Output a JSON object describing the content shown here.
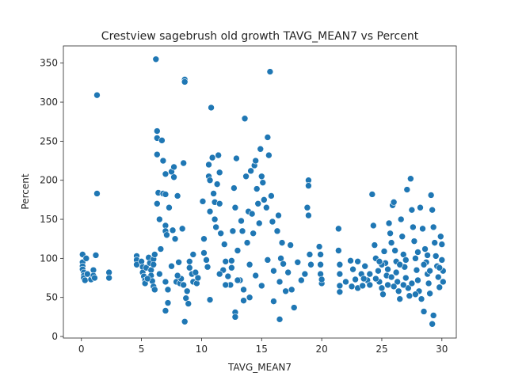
{
  "chart_data": {
    "type": "scatter",
    "title": "Crestview sagebrush old growth TAVG_MEAN7 vs Percent",
    "xlabel": "TAVG_MEAN7",
    "ylabel": "Percent",
    "xlim": [
      -1.5,
      31.2
    ],
    "ylim": [
      -2,
      372
    ],
    "xticks": [
      0,
      5,
      10,
      15,
      20,
      25,
      30
    ],
    "yticks": [
      0,
      50,
      100,
      150,
      200,
      250,
      300,
      350
    ],
    "grid": false,
    "legend": "none",
    "marker_color": "#1f77b4",
    "points": [
      [
        0.1,
        105
      ],
      [
        0.1,
        95
      ],
      [
        0.1,
        90
      ],
      [
        0.1,
        86
      ],
      [
        0.2,
        82
      ],
      [
        0.2,
        78
      ],
      [
        0.2,
        75
      ],
      [
        0.3,
        72
      ],
      [
        0.4,
        100
      ],
      [
        0.5,
        80
      ],
      [
        0.8,
        73
      ],
      [
        1.0,
        85
      ],
      [
        1.0,
        78
      ],
      [
        1.1,
        75
      ],
      [
        1.2,
        104
      ],
      [
        1.3,
        309
      ],
      [
        1.3,
        183
      ],
      [
        2.3,
        82
      ],
      [
        2.3,
        75
      ],
      [
        4.6,
        103
      ],
      [
        4.6,
        98
      ],
      [
        4.6,
        92
      ],
      [
        5.0,
        96
      ],
      [
        5.1,
        89
      ],
      [
        5.1,
        82
      ],
      [
        5.2,
        77
      ],
      [
        5.3,
        72
      ],
      [
        5.3,
        68
      ],
      [
        5.4,
        88
      ],
      [
        5.6,
        101
      ],
      [
        5.7,
        94
      ],
      [
        5.8,
        85
      ],
      [
        5.8,
        78
      ],
      [
        5.9,
        71
      ],
      [
        6.0,
        64
      ],
      [
        6.0,
        99
      ],
      [
        6.1,
        105
      ],
      [
        6.1,
        60
      ],
      [
        6.2,
        355
      ],
      [
        6.3,
        263
      ],
      [
        6.3,
        254
      ],
      [
        6.3,
        233
      ],
      [
        6.4,
        184
      ],
      [
        6.3,
        170
      ],
      [
        6.5,
        150
      ],
      [
        6.6,
        112
      ],
      [
        6.7,
        251
      ],
      [
        6.8,
        225
      ],
      [
        6.8,
        183
      ],
      [
        7.0,
        208
      ],
      [
        7.0,
        182
      ],
      [
        7.0,
        142
      ],
      [
        7.0,
        135
      ],
      [
        7.1,
        130
      ],
      [
        7.2,
        60
      ],
      [
        7.2,
        43
      ],
      [
        7.0,
        33
      ],
      [
        7.3,
        165
      ],
      [
        7.5,
        211
      ],
      [
        7.6,
        136
      ],
      [
        7.7,
        217
      ],
      [
        7.7,
        204
      ],
      [
        7.8,
        125
      ],
      [
        7.9,
        70
      ],
      [
        8.0,
        180
      ],
      [
        8.1,
        95
      ],
      [
        8.2,
        68
      ],
      [
        8.3,
        74
      ],
      [
        8.4,
        138
      ],
      [
        8.5,
        222
      ],
      [
        8.6,
        329
      ],
      [
        8.6,
        326
      ],
      [
        8.6,
        19
      ],
      [
        8.7,
        49
      ],
      [
        8.8,
        58
      ],
      [
        8.9,
        42
      ],
      [
        9.0,
        96
      ],
      [
        9.2,
        80
      ],
      [
        9.3,
        105
      ],
      [
        9.3,
        70
      ],
      [
        9.5,
        82
      ],
      [
        9.6,
        68
      ],
      [
        9.7,
        75
      ],
      [
        10.1,
        173
      ],
      [
        10.2,
        125
      ],
      [
        10.2,
        107
      ],
      [
        10.4,
        98
      ],
      [
        10.5,
        89
      ],
      [
        10.6,
        220
      ],
      [
        10.6,
        205
      ],
      [
        10.7,
        200
      ],
      [
        10.7,
        160
      ],
      [
        10.7,
        47
      ],
      [
        10.8,
        293
      ],
      [
        10.9,
        229
      ],
      [
        11.0,
        183
      ],
      [
        11.1,
        172
      ],
      [
        11.1,
        150
      ],
      [
        11.2,
        140
      ],
      [
        11.3,
        195
      ],
      [
        11.4,
        232
      ],
      [
        11.5,
        210
      ],
      [
        11.5,
        170
      ],
      [
        11.6,
        132
      ],
      [
        11.8,
        85
      ],
      [
        11.9,
        118
      ],
      [
        12.0,
        96
      ],
      [
        12.2,
        77
      ],
      [
        12.4,
        66
      ],
      [
        12.5,
        97
      ],
      [
        12.6,
        135
      ],
      [
        12.7,
        190
      ],
      [
        12.8,
        165
      ],
      [
        12.8,
        31
      ],
      [
        12.8,
        25
      ],
      [
        12.9,
        228
      ],
      [
        13.0,
        110
      ],
      [
        13.2,
        72
      ],
      [
        13.3,
        148
      ],
      [
        13.4,
        135
      ],
      [
        13.5,
        46
      ],
      [
        13.6,
        279
      ],
      [
        13.7,
        205
      ],
      [
        13.8,
        120
      ],
      [
        13.9,
        160
      ],
      [
        14.0,
        50
      ],
      [
        14.1,
        212
      ],
      [
        14.2,
        157
      ],
      [
        14.3,
        132
      ],
      [
        14.4,
        219
      ],
      [
        14.5,
        225
      ],
      [
        14.6,
        189
      ],
      [
        14.7,
        170
      ],
      [
        14.8,
        145
      ],
      [
        14.9,
        240
      ],
      [
        15.0,
        205
      ],
      [
        15.1,
        197
      ],
      [
        15.2,
        175
      ],
      [
        15.4,
        165
      ],
      [
        15.5,
        255
      ],
      [
        15.6,
        232
      ],
      [
        15.7,
        339
      ],
      [
        15.8,
        180
      ],
      [
        15.9,
        147
      ],
      [
        16.0,
        45
      ],
      [
        16.3,
        135
      ],
      [
        16.4,
        155
      ],
      [
        16.5,
        22
      ],
      [
        16.6,
        100
      ],
      [
        16.7,
        120
      ],
      [
        16.8,
        93
      ],
      [
        17.2,
        82
      ],
      [
        17.4,
        117
      ],
      [
        17.5,
        60
      ],
      [
        17.7,
        37
      ],
      [
        18.0,
        95
      ],
      [
        18.3,
        72
      ],
      [
        18.6,
        80
      ],
      [
        18.8,
        165
      ],
      [
        18.9,
        200
      ],
      [
        18.9,
        193
      ],
      [
        18.9,
        155
      ],
      [
        19.0,
        105
      ],
      [
        19.1,
        92
      ],
      [
        19.8,
        115
      ],
      [
        19.9,
        105
      ],
      [
        19.9,
        92
      ],
      [
        19.9,
        80
      ],
      [
        20.0,
        68
      ],
      [
        20.0,
        73
      ],
      [
        21.4,
        138
      ],
      [
        21.4,
        110
      ],
      [
        21.5,
        92
      ],
      [
        21.5,
        80
      ],
      [
        21.5,
        65
      ],
      [
        21.5,
        57
      ],
      [
        22.4,
        97
      ],
      [
        22.6,
        86
      ],
      [
        22.8,
        73
      ],
      [
        23.0,
        62
      ],
      [
        23.0,
        96
      ],
      [
        23.3,
        80
      ],
      [
        23.4,
        65
      ],
      [
        23.6,
        90
      ],
      [
        23.8,
        72
      ],
      [
        24.0,
        66
      ],
      [
        24.2,
        182
      ],
      [
        24.3,
        142
      ],
      [
        24.4,
        117
      ],
      [
        24.5,
        100
      ],
      [
        24.7,
        84
      ],
      [
        24.8,
        70
      ],
      [
        25.0,
        62
      ],
      [
        25.1,
        54
      ],
      [
        25.2,
        109
      ],
      [
        25.3,
        94
      ],
      [
        25.4,
        78
      ],
      [
        25.5,
        66
      ],
      [
        25.6,
        145
      ],
      [
        25.7,
        132
      ],
      [
        25.8,
        120
      ],
      [
        25.9,
        168
      ],
      [
        26.0,
        172
      ],
      [
        26.1,
        110
      ],
      [
        26.2,
        96
      ],
      [
        26.2,
        82
      ],
      [
        26.3,
        70
      ],
      [
        26.4,
        58
      ],
      [
        26.5,
        48
      ],
      [
        26.6,
        150
      ],
      [
        26.7,
        128
      ],
      [
        26.8,
        105
      ],
      [
        26.9,
        89
      ],
      [
        27.0,
        75
      ],
      [
        27.1,
        188
      ],
      [
        27.2,
        62
      ],
      [
        27.3,
        52
      ],
      [
        27.4,
        202
      ],
      [
        27.5,
        162
      ],
      [
        27.6,
        140
      ],
      [
        27.7,
        122
      ],
      [
        27.8,
        100
      ],
      [
        27.9,
        85
      ],
      [
        28.0,
        72
      ],
      [
        28.1,
        58
      ],
      [
        28.2,
        165
      ],
      [
        28.3,
        48
      ],
      [
        28.4,
        138
      ],
      [
        28.5,
        32
      ],
      [
        28.6,
        112
      ],
      [
        28.7,
        95
      ],
      [
        28.8,
        80
      ],
      [
        28.9,
        68
      ],
      [
        29.0,
        55
      ],
      [
        29.1,
        181
      ],
      [
        29.2,
        162
      ],
      [
        29.3,
        140
      ],
      [
        29.4,
        120
      ],
      [
        29.3,
        27
      ],
      [
        29.2,
        16
      ],
      [
        29.5,
        103
      ],
      [
        29.6,
        90
      ],
      [
        29.7,
        76
      ],
      [
        29.8,
        63
      ],
      [
        29.9,
        128
      ],
      [
        30.0,
        118
      ],
      [
        30.0,
        98
      ],
      [
        30.1,
        84
      ],
      [
        30.1,
        70
      ],
      [
        11.5,
        80
      ],
      [
        12.0,
        66
      ],
      [
        12.5,
        88
      ],
      [
        13.0,
        72
      ],
      [
        13.5,
        60
      ],
      [
        14.0,
        92
      ],
      [
        14.5,
        78
      ],
      [
        15.0,
        65
      ],
      [
        15.5,
        98
      ],
      [
        16.0,
        84
      ],
      [
        16.5,
        70
      ],
      [
        17.0,
        58
      ],
      [
        6.5,
        80
      ],
      [
        7.0,
        70
      ],
      [
        7.5,
        90
      ],
      [
        8.0,
        78
      ],
      [
        8.5,
        66
      ],
      [
        9.0,
        88
      ],
      [
        6.0,
        92
      ],
      [
        5.5,
        74
      ],
      [
        24.0,
        80
      ],
      [
        24.5,
        74
      ],
      [
        25.0,
        92
      ],
      [
        25.5,
        86
      ],
      [
        26.0,
        64
      ],
      [
        26.5,
        92
      ],
      [
        27.0,
        98
      ],
      [
        27.5,
        68
      ],
      [
        28.0,
        108
      ],
      [
        28.5,
        92
      ],
      [
        29.0,
        84
      ],
      [
        22.0,
        70
      ],
      [
        22.5,
        64
      ],
      [
        23.5,
        74
      ],
      [
        24.8,
        96
      ],
      [
        25.8,
        76
      ],
      [
        26.8,
        66
      ],
      [
        27.8,
        54
      ],
      [
        28.8,
        104
      ],
      [
        29.8,
        88
      ]
    ]
  }
}
